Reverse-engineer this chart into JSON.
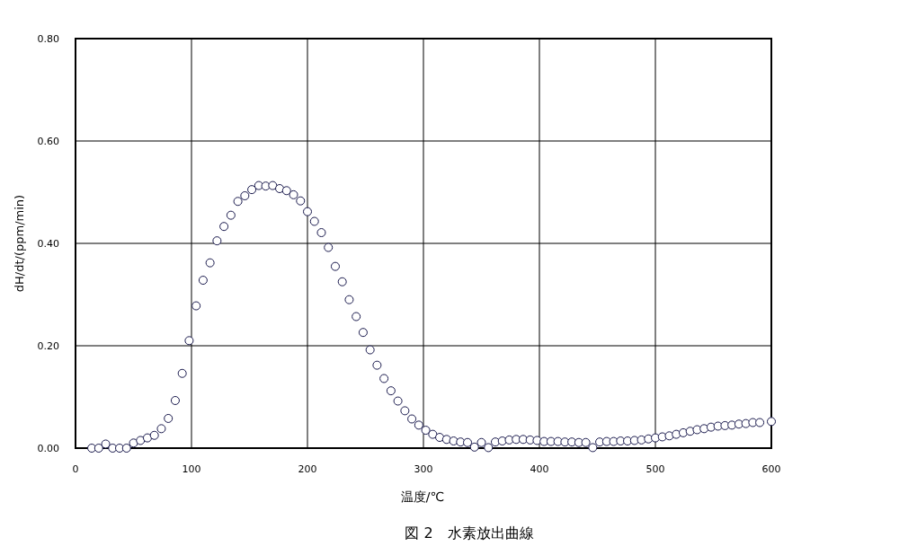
{
  "chart_data": {
    "type": "scatter",
    "title": "図 2　水素放出曲線",
    "xlabel": "温度/℃",
    "ylabel": "dH/dt/(ppm/min)",
    "x": [
      14,
      20,
      26,
      32,
      38,
      44,
      50,
      56,
      62,
      68,
      74,
      80,
      86,
      92,
      98,
      104,
      110,
      116,
      122,
      128,
      134,
      140,
      146,
      152,
      158,
      164,
      170,
      176,
      182,
      188,
      194,
      200,
      206,
      212,
      218,
      224,
      230,
      236,
      242,
      248,
      254,
      260,
      266,
      272,
      278,
      284,
      290,
      296,
      302,
      308,
      314,
      320,
      326,
      332,
      338,
      344,
      350,
      356,
      362,
      368,
      374,
      380,
      386,
      392,
      398,
      404,
      410,
      416,
      422,
      428,
      434,
      440,
      446,
      452,
      458,
      464,
      470,
      476,
      482,
      488,
      494,
      500,
      506,
      512,
      518,
      524,
      530,
      536,
      542,
      548,
      554,
      560,
      566,
      572,
      578,
      584,
      590,
      600
    ],
    "values": [
      0.0,
      0.0,
      0.008,
      0.0,
      0.0,
      0.0,
      0.01,
      0.015,
      0.02,
      0.025,
      0.038,
      0.058,
      0.093,
      0.146,
      0.21,
      0.278,
      0.328,
      0.362,
      0.405,
      0.433,
      0.455,
      0.482,
      0.493,
      0.505,
      0.513,
      0.512,
      0.513,
      0.507,
      0.503,
      0.495,
      0.483,
      0.462,
      0.443,
      0.421,
      0.392,
      0.355,
      0.325,
      0.29,
      0.257,
      0.226,
      0.192,
      0.162,
      0.136,
      0.112,
      0.092,
      0.073,
      0.057,
      0.045,
      0.035,
      0.027,
      0.021,
      0.017,
      0.014,
      0.012,
      0.011,
      0.002,
      0.011,
      0.001,
      0.012,
      0.014,
      0.016,
      0.017,
      0.017,
      0.016,
      0.015,
      0.013,
      0.013,
      0.013,
      0.012,
      0.012,
      0.011,
      0.011,
      0.001,
      0.012,
      0.013,
      0.013,
      0.014,
      0.014,
      0.015,
      0.016,
      0.018,
      0.02,
      0.022,
      0.024,
      0.027,
      0.03,
      0.033,
      0.036,
      0.038,
      0.041,
      0.043,
      0.044,
      0.045,
      0.047,
      0.048,
      0.05,
      0.05,
      0.052
    ],
    "color": "#1a1a4d",
    "marker": "circle",
    "grid": true,
    "xlim": [
      0,
      600
    ],
    "xticks": [
      0,
      100,
      200,
      300,
      400,
      500,
      600
    ],
    "ylim": [
      0,
      0.8
    ],
    "yticks": [
      {
        "value": 0,
        "label": "0.00"
      },
      {
        "value": 0.2,
        "label": "0.20"
      },
      {
        "value": 0.4,
        "label": "0.40"
      },
      {
        "value": 0.6,
        "label": "0.60"
      },
      {
        "value": 0.8,
        "label": "0.80"
      }
    ]
  }
}
